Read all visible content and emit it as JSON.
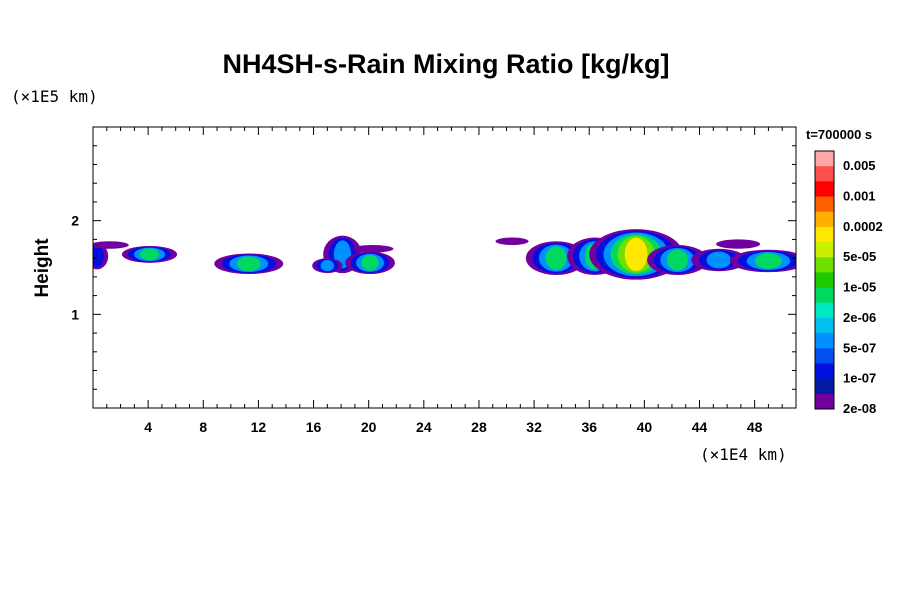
{
  "chart_data": {
    "type": "contour",
    "title": "NH4SH-s-Rain Mixing Ratio [kg/kg]",
    "ylabel": "Height",
    "x_unit": "(×1E4 km)",
    "y_unit": "(×1E5 km)",
    "time_label": "t=700000 s",
    "xlim": [
      0,
      51
    ],
    "ylim": [
      0,
      3
    ],
    "x_ticks": [
      "4",
      "8",
      "12",
      "16",
      "20",
      "24",
      "28",
      "32",
      "36",
      "40",
      "44",
      "48"
    ],
    "y_ticks": [
      "1",
      "2"
    ],
    "colorbar": {
      "labels": [
        "0.005",
        "0.001",
        "0.0002",
        "5e-05",
        "1e-05",
        "2e-06",
        "5e-07",
        "1e-07",
        "2e-08"
      ],
      "colors": [
        "#ffa6a6",
        "#ff5050",
        "#ff0000",
        "#ff6000",
        "#ffb000",
        "#ffe800",
        "#c8f000",
        "#6ee000",
        "#20c800",
        "#00d860",
        "#00e8c0",
        "#00c0f0",
        "#0090ff",
        "#0050f0",
        "#0010e0",
        "#001aa0",
        "#7000a0"
      ]
    },
    "levels": [
      2e-08,
      1e-07,
      5e-07,
      2e-06,
      1e-05,
      5e-05
    ],
    "level_colors": [
      "#7000a0",
      "#0010e0",
      "#0090ff",
      "#00d860",
      "#6ee000",
      "#ffe800"
    ],
    "blobs": [
      {
        "x": 0.3,
        "y": 1.62,
        "w": 0.8,
        "h": 0.14,
        "peak": 2
      },
      {
        "x": 1.2,
        "y": 1.74,
        "w": 1.4,
        "h": 0.04,
        "peak": 1
      },
      {
        "x": 4.1,
        "y": 1.64,
        "w": 2.0,
        "h": 0.09,
        "peak": 4
      },
      {
        "x": 11.3,
        "y": 1.54,
        "w": 2.5,
        "h": 0.11,
        "peak": 4
      },
      {
        "x": 18.1,
        "y": 1.64,
        "w": 1.4,
        "h": 0.2,
        "peak": 3
      },
      {
        "x": 20.1,
        "y": 1.55,
        "w": 1.8,
        "h": 0.12,
        "peak": 4
      },
      {
        "x": 17.0,
        "y": 1.52,
        "w": 1.1,
        "h": 0.08,
        "peak": 3
      },
      {
        "x": 20.3,
        "y": 1.7,
        "w": 1.5,
        "h": 0.04,
        "peak": 1
      },
      {
        "x": 30.4,
        "y": 1.78,
        "w": 1.2,
        "h": 0.04,
        "peak": 1
      },
      {
        "x": 33.6,
        "y": 1.6,
        "w": 2.2,
        "h": 0.18,
        "peak": 4
      },
      {
        "x": 36.4,
        "y": 1.62,
        "w": 2.0,
        "h": 0.2,
        "peak": 4
      },
      {
        "x": 39.4,
        "y": 1.64,
        "w": 3.4,
        "h": 0.27,
        "peak": 6
      },
      {
        "x": 42.4,
        "y": 1.58,
        "w": 2.2,
        "h": 0.16,
        "peak": 4
      },
      {
        "x": 45.4,
        "y": 1.58,
        "w": 2.0,
        "h": 0.12,
        "peak": 3
      },
      {
        "x": 49.0,
        "y": 1.57,
        "w": 2.8,
        "h": 0.12,
        "peak": 4
      },
      {
        "x": 46.8,
        "y": 1.75,
        "w": 1.6,
        "h": 0.05,
        "peak": 1
      }
    ]
  }
}
